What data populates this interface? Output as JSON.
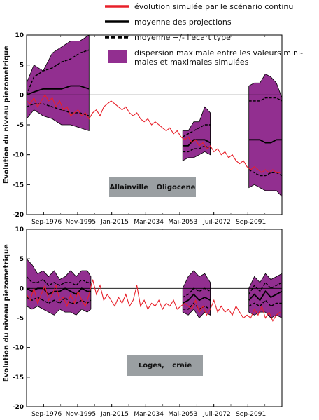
{
  "legend": {
    "items": [
      {
        "key": "simulated",
        "label": "évolution simulée par le scénario continu",
        "color": "#e8202a"
      },
      {
        "key": "mean",
        "label": "moyenne des projections",
        "color": "#000000"
      },
      {
        "key": "stddev",
        "label": "moyenne +/- l'écart type",
        "color": "#000000"
      },
      {
        "key": "dispersion",
        "label": "dispersion maximale entre les valeurs mini-\nmales et maximales simulées",
        "color": "#922f90"
      }
    ]
  },
  "colors": {
    "dispersion_fill": "#922f90",
    "simulated_line": "#e8202a",
    "lines": "#000000"
  },
  "chart_data": [
    {
      "type": "area",
      "station_label": "Allainville   Oligocene",
      "ylabel": "Evolution du niveau piezometrique",
      "ylim": [
        -20,
        10
      ],
      "yticks": [
        10,
        5,
        0,
        -5,
        -10,
        -15,
        -20
      ],
      "xticks": [
        "Sep-1976",
        "Nov-1995",
        "Jan-2015",
        "Mar-2034",
        "Mai-2053",
        "Juil-2072",
        "Sep-2091"
      ],
      "xlim": [
        1961,
        2100
      ],
      "zero_line": true,
      "simulated": {
        "x": [
          1961,
          1963,
          1965,
          1967,
          1969,
          1971,
          1973,
          1975,
          1977,
          1979,
          1981,
          1983,
          1985,
          1987,
          1989,
          1991,
          1993,
          1995,
          1997,
          1999,
          2001,
          2003,
          2005,
          2007,
          2009,
          2011,
          2013,
          2015,
          2017,
          2019,
          2021,
          2023,
          2025,
          2027,
          2029,
          2031,
          2033,
          2035,
          2037,
          2039,
          2041,
          2043,
          2045,
          2047,
          2049,
          2051,
          2053,
          2055,
          2057,
          2059,
          2061,
          2063,
          2065,
          2067,
          2069,
          2071,
          2073,
          2075,
          2077,
          2079,
          2081,
          2083,
          2085,
          2087,
          2089,
          2091,
          2093,
          2095,
          2097,
          2099
        ],
        "y": [
          -1,
          -1.5,
          -0.5,
          -2,
          -1,
          0,
          -1,
          -0.5,
          -2,
          -1,
          -2.5,
          -2,
          -3.5,
          -3,
          -2.5,
          -3.5,
          -3,
          -4,
          -3,
          -2.5,
          -3.5,
          -2,
          -1.5,
          -1,
          -1.5,
          -2,
          -2.5,
          -2,
          -3,
          -3.5,
          -3,
          -4,
          -4.5,
          -4,
          -5,
          -4.5,
          -5,
          -5.5,
          -6,
          -5.5,
          -6.5,
          -6,
          -7,
          -7.5,
          -7,
          -8,
          -7.5,
          -8.5,
          -8,
          -9,
          -8.5,
          -9.5,
          -9,
          -10,
          -9.5,
          -10.5,
          -10,
          -11,
          -11.5,
          -11,
          -12,
          -12.5,
          -12,
          -12.5,
          -13,
          -12.5,
          -13,
          -12.5,
          -13,
          -13
        ]
      },
      "blocks": [
        {
          "x": [
            1961,
            1965,
            1970,
            1975,
            1980,
            1985,
            1990,
            1995
          ],
          "max": [
            2,
            5,
            4,
            7,
            8,
            9,
            9,
            10
          ],
          "plus_sd": [
            0,
            3,
            4,
            4.5,
            5.5,
            6,
            7,
            7.5
          ],
          "mean": [
            0,
            0.5,
            1,
            1,
            1,
            1.5,
            1.5,
            1
          ],
          "minus_sd": [
            -2,
            -1.5,
            -1.5,
            -2,
            -2.5,
            -3,
            -3,
            -3.5
          ],
          "min": [
            -4,
            -2.5,
            -3.5,
            -4,
            -5,
            -5,
            -5.5,
            -6
          ]
        },
        {
          "x": [
            2046,
            2049,
            2052,
            2055,
            2058,
            2061
          ],
          "max": [
            -6,
            -6,
            -4.5,
            -4.5,
            -2,
            -3
          ],
          "plus_sd": [
            -7,
            -6.5,
            -6,
            -5.5,
            -5,
            -5
          ],
          "mean": [
            -8.5,
            -8.5,
            -7.5,
            -7.5,
            -7.5,
            -8
          ],
          "minus_sd": [
            -9.5,
            -9.5,
            -9,
            -9,
            -8.5,
            -9
          ],
          "min": [
            -11,
            -10.5,
            -10.5,
            -10,
            -9.5,
            -10
          ]
        },
        {
          "x": [
            2082,
            2085,
            2088,
            2091,
            2094,
            2097,
            2100
          ],
          "max": [
            1.5,
            2,
            2,
            3.5,
            3,
            2,
            -0.5
          ],
          "plus_sd": [
            -1,
            -1,
            -1,
            -0.5,
            -0.5,
            -0.5,
            -1
          ],
          "mean": [
            -7.5,
            -7.5,
            -7.5,
            -8,
            -8,
            -7.5,
            -7.5
          ],
          "minus_sd": [
            -12.5,
            -13,
            -13.5,
            -13.5,
            -13,
            -13,
            -13.5
          ],
          "min": [
            -15.5,
            -15,
            -15.5,
            -16,
            -16,
            -16,
            -17
          ]
        }
      ]
    },
    {
      "type": "area",
      "station_label": "Loges, craie",
      "ylabel": "Evolution du niveau piezometrique",
      "ylim": [
        -20,
        10
      ],
      "yticks": [
        10,
        5,
        0,
        -5,
        -10,
        -15,
        -20
      ],
      "xticks": [
        "Sep-1976",
        "Nov-1995",
        "Jan-2015",
        "Mar-2034",
        "Mai-2053",
        "Juil-2072",
        "Sep-2091"
      ],
      "xlim": [
        1961,
        2100
      ],
      "zero_line": true,
      "simulated": {
        "x": [
          1961,
          1963,
          1965,
          1967,
          1969,
          1971,
          1973,
          1975,
          1977,
          1979,
          1981,
          1983,
          1985,
          1987,
          1989,
          1991,
          1993,
          1995,
          1997,
          1999,
          2001,
          2003,
          2005,
          2007,
          2009,
          2011,
          2013,
          2015,
          2017,
          2019,
          2021,
          2023,
          2025,
          2027,
          2029,
          2031,
          2033,
          2035,
          2037,
          2039,
          2041,
          2043,
          2045,
          2047,
          2049,
          2051,
          2053,
          2055,
          2057,
          2059,
          2061,
          2063,
          2065,
          2067,
          2069,
          2071,
          2073,
          2075,
          2077,
          2079,
          2081,
          2083,
          2085,
          2087,
          2089,
          2091,
          2093,
          2095,
          2097,
          2099
        ],
        "y": [
          -1,
          -2,
          0,
          -2.5,
          -1,
          0.5,
          -2,
          -1,
          0.5,
          -2,
          -1.5,
          -3,
          -1,
          -2.5,
          -0.5,
          -2,
          -3,
          -1,
          1.5,
          -1,
          0.5,
          -2,
          -1,
          -2,
          -3,
          -1.5,
          -2.5,
          -1,
          -3,
          -2,
          0.5,
          -3,
          -2,
          -3.5,
          -2.5,
          -3,
          -2,
          -3.5,
          -2.5,
          -3,
          -2,
          -3.5,
          -3,
          -2.5,
          -3,
          -3.5,
          -2,
          -4,
          -3,
          -4.5,
          -3.5,
          -2,
          -4,
          -3,
          -4,
          -3.5,
          -4.5,
          -3,
          -4,
          -5,
          -4.5,
          -5,
          -3.5,
          -4.5,
          -3,
          -5,
          -4,
          -5.5,
          -4.5,
          -4
        ]
      },
      "blocks": [
        {
          "x": [
            1961,
            1964,
            1967,
            1970,
            1973,
            1976,
            1979,
            1982,
            1985,
            1988,
            1991,
            1994,
            1996
          ],
          "max": [
            5,
            4,
            2.5,
            3,
            2,
            3,
            1.5,
            2,
            3,
            2,
            3,
            3,
            2
          ],
          "plus_sd": [
            2,
            1,
            1,
            1.5,
            0.5,
            1,
            0.5,
            1,
            1,
            0.5,
            1.5,
            1,
            1
          ],
          "mean": [
            0,
            -0.5,
            0,
            0,
            -1,
            -0.5,
            -0.5,
            0,
            -0.5,
            -1,
            0,
            -0.5,
            -0.5
          ],
          "minus_sd": [
            -1.5,
            -2,
            -1.5,
            -2,
            -2.5,
            -2,
            -2.5,
            -1.5,
            -2.5,
            -2.5,
            -2,
            -2.5,
            -2
          ],
          "min": [
            -3,
            -3.5,
            -3,
            -3.5,
            -4,
            -4.5,
            -3.5,
            -4,
            -4,
            -4.5,
            -3.5,
            -4,
            -3.5
          ]
        },
        {
          "x": [
            2046,
            2049,
            2052,
            2055,
            2058,
            2061
          ],
          "max": [
            0,
            2,
            3,
            2,
            2.5,
            1
          ],
          "plus_sd": [
            -1.5,
            -1,
            0,
            -0.5,
            0,
            -0.5
          ],
          "mean": [
            -2.5,
            -2,
            -1,
            -2,
            -1.5,
            -2
          ],
          "minus_sd": [
            -3.5,
            -3.5,
            -2.5,
            -3.5,
            -3,
            -3.5
          ],
          "min": [
            -4,
            -4.5,
            -3.5,
            -5,
            -4,
            -4.5
          ]
        },
        {
          "x": [
            2082,
            2085,
            2088,
            2091,
            2094,
            2097,
            2100
          ],
          "max": [
            0,
            2,
            1,
            2.5,
            1.5,
            2,
            2.5
          ],
          "plus_sd": [
            -1,
            0.5,
            -0.5,
            1,
            0,
            0.5,
            1
          ],
          "mean": [
            -2,
            -1,
            -2,
            -0.5,
            -1.5,
            -1,
            -0.5
          ],
          "minus_sd": [
            -3,
            -2.5,
            -3,
            -2,
            -3,
            -2.5,
            -2.5
          ],
          "min": [
            -4,
            -4.5,
            -4,
            -4,
            -5,
            -4.5,
            -5
          ]
        }
      ]
    }
  ]
}
